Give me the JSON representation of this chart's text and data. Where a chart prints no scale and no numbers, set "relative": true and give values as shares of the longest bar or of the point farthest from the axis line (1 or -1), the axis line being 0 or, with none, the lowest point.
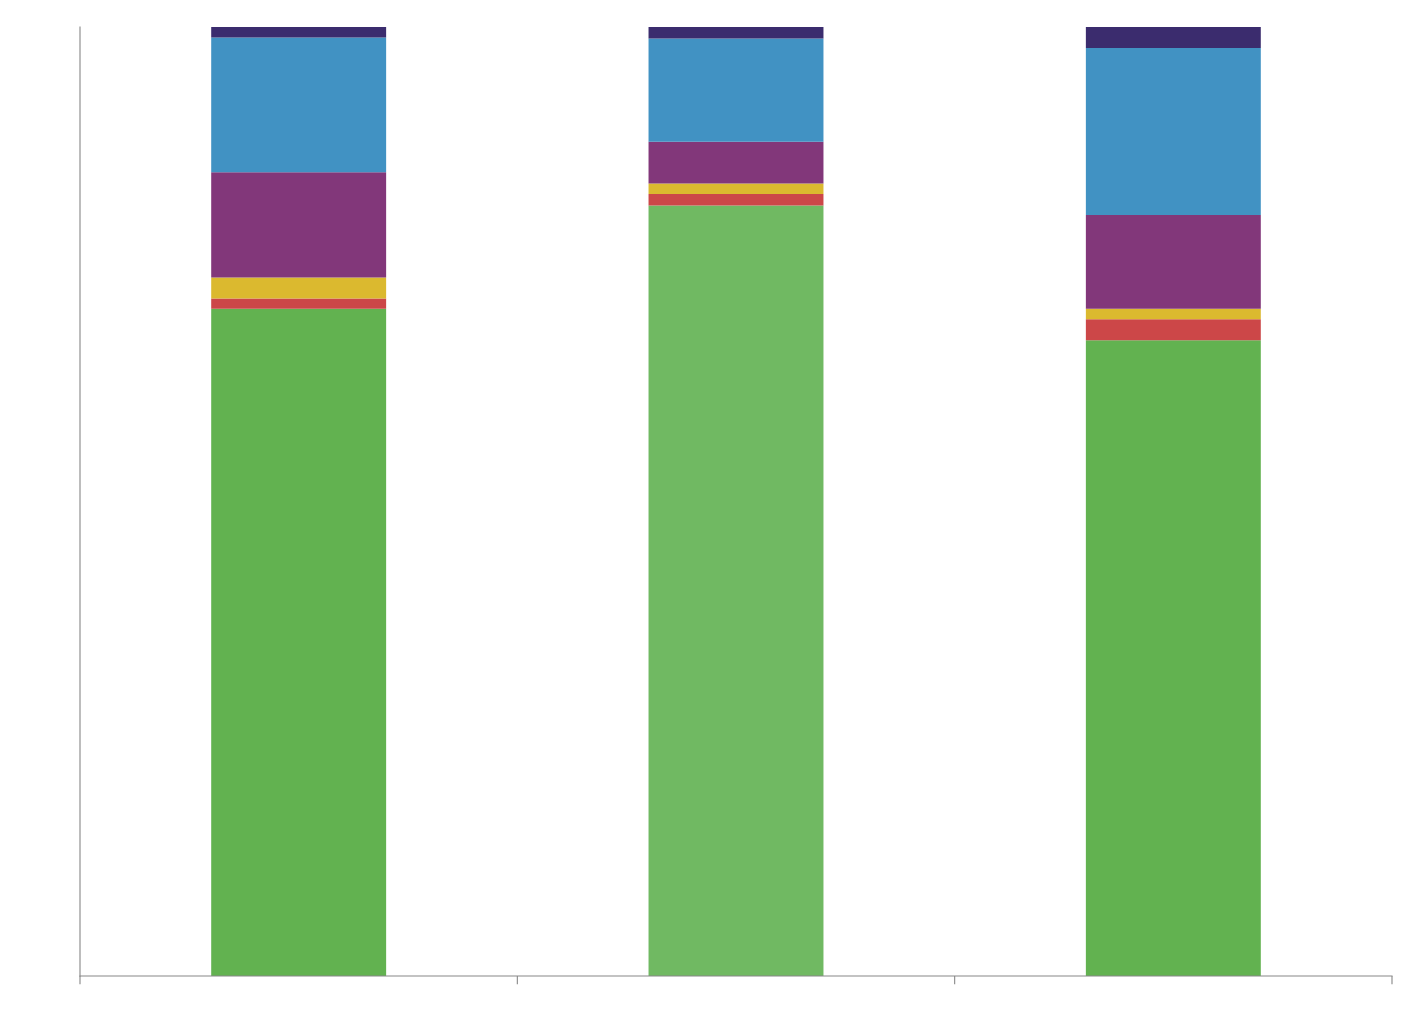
{
  "chart_data": {
    "type": "bar",
    "stacked": true,
    "relative": true,
    "categories": [
      null,
      null,
      null
    ],
    "series": [
      {
        "color": "#62b250",
        "colors": [
          "#62b250",
          "#70b962",
          "#62b250"
        ],
        "values": [
          0.703,
          0.812,
          0.67
        ]
      },
      {
        "color": "#cc4748",
        "values": [
          0.011,
          0.012,
          0.022
        ]
      },
      {
        "color": "#dbb92f",
        "values": [
          0.022,
          0.011,
          0.011
        ]
      },
      {
        "color": "#82377a",
        "values": [
          0.111,
          0.044,
          0.099
        ]
      },
      {
        "color": "#4192c3",
        "values": [
          0.142,
          0.109,
          0.176
        ]
      },
      {
        "color": "#3b2c6e",
        "values": [
          0.011,
          0.012,
          0.022
        ]
      }
    ]
  }
}
